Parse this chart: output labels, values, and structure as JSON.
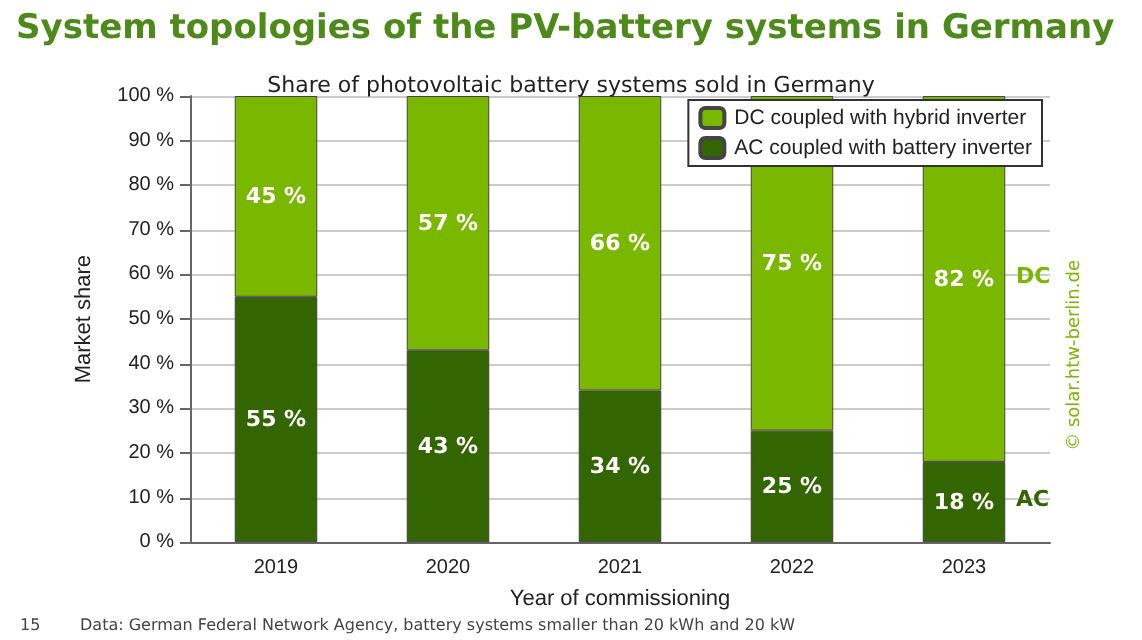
{
  "chart_data": {
    "type": "bar",
    "stacked": true,
    "title": "System topologies of the PV-battery systems in Germany",
    "subtitle": "Share of photovoltaic battery systems sold in Germany",
    "xlabel": "Year of commissioning",
    "ylabel": "Market share",
    "categories": [
      "2019",
      "2020",
      "2021",
      "2022",
      "2023"
    ],
    "series": [
      {
        "name": "AC coupled with battery inverter",
        "color": "#336600",
        "values": [
          55,
          43,
          34,
          25,
          18
        ],
        "value_labels": [
          "55 %",
          "43 %",
          "34 %",
          "25 %",
          "18 %"
        ]
      },
      {
        "name": "DC coupled with hybrid inverter",
        "color": "#7ab800",
        "values": [
          45,
          57,
          66,
          75,
          82
        ],
        "value_labels": [
          "45 %",
          "57 %",
          "66 %",
          "75 %",
          "82 %"
        ]
      }
    ],
    "ylim": [
      0,
      100
    ],
    "yticks": [
      {
        "value": 0,
        "label": "0 %"
      },
      {
        "value": 10,
        "label": "10 %"
      },
      {
        "value": 20,
        "label": "20 %"
      },
      {
        "value": 30,
        "label": "30 %"
      },
      {
        "value": 40,
        "label": "40 %"
      },
      {
        "value": 50,
        "label": "50 %"
      },
      {
        "value": 60,
        "label": "60 %"
      },
      {
        "value": 70,
        "label": "70 %"
      },
      {
        "value": 80,
        "label": "80 %"
      },
      {
        "value": 90,
        "label": "90 %"
      },
      {
        "value": 100,
        "label": "100 %"
      }
    ],
    "grid": "y",
    "legend": "top right",
    "annotations": [
      "DC",
      "AC",
      "© solar.htw-berlin.de",
      "Data: German Federal Network Agency, battery systems smaller than 20 kWh and 20 kW",
      "15"
    ]
  }
}
